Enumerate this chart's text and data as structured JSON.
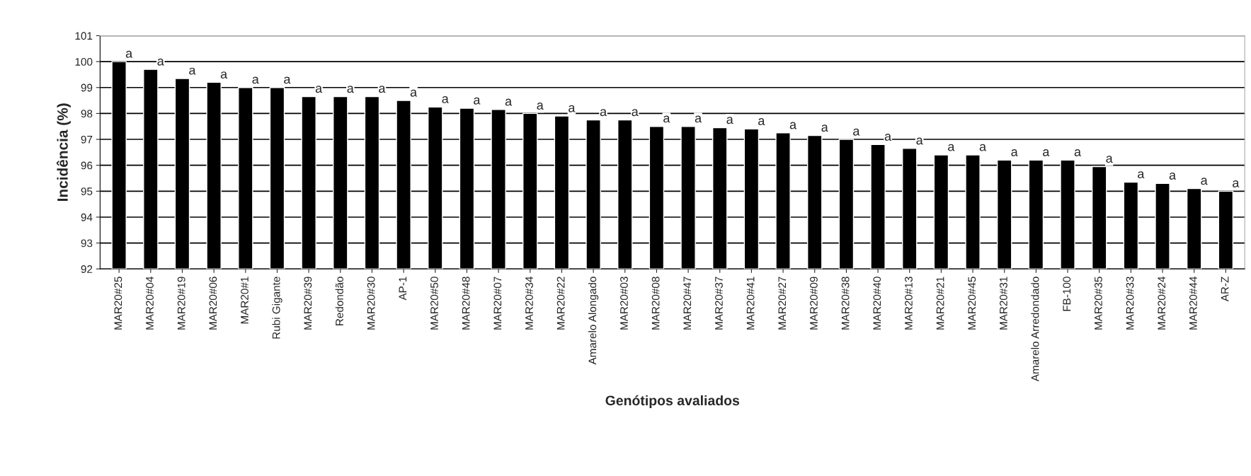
{
  "chart_data": {
    "type": "bar",
    "xlabel": "Genótipos avaliados",
    "ylabel": "Incidência (%)",
    "categories": [
      "MAR20#25",
      "MAR20#04",
      "MAR20#19",
      "MAR20#06",
      "MAR20#1",
      "Rubi Gigante",
      "MAR20#39",
      "Redondão",
      "MAR20#30",
      "AP-1",
      "MAR20#50",
      "MAR20#48",
      "MAR20#07",
      "MAR20#34",
      "MAR20#22",
      "Amarelo Alongado",
      "MAR20#03",
      "MAR20#08",
      "MAR20#47",
      "MAR20#37",
      "MAR20#41",
      "MAR20#27",
      "MAR20#09",
      "MAR20#38",
      "MAR20#40",
      "MAR20#13",
      "MAR20#21",
      "MAR20#45",
      "MAR20#31",
      "Amarelo Arredondado",
      "FB-100",
      "MAR20#35",
      "MAR20#33",
      "MAR20#24",
      "MAR20#44",
      "AR-Z"
    ],
    "values": [
      100,
      99.7,
      99.35,
      99.2,
      99.0,
      99.0,
      98.65,
      98.65,
      98.65,
      98.5,
      98.25,
      98.2,
      98.15,
      98.0,
      97.9,
      97.75,
      97.75,
      97.5,
      97.5,
      97.45,
      97.4,
      97.25,
      97.15,
      97.0,
      96.8,
      96.65,
      96.4,
      96.4,
      96.2,
      96.2,
      96.2,
      95.95,
      95.35,
      95.3,
      95.1,
      95.0
    ],
    "value_labels": [
      "a",
      "a",
      "a",
      "a",
      "a",
      "a",
      "a",
      "a",
      "a",
      "a",
      "a",
      "a",
      "a",
      "a",
      "a",
      "a",
      "a",
      "a",
      "a",
      "a",
      "a",
      "a",
      "a",
      "a",
      "a",
      "a",
      "a",
      "a",
      "a",
      "a",
      "a",
      "a",
      "a",
      "a",
      "a",
      "a"
    ],
    "color": "#000000",
    "ylim": [
      92,
      101
    ],
    "yticks": [
      92,
      93,
      94,
      95,
      96,
      97,
      98,
      99,
      100,
      101
    ],
    "grid": "y"
  }
}
